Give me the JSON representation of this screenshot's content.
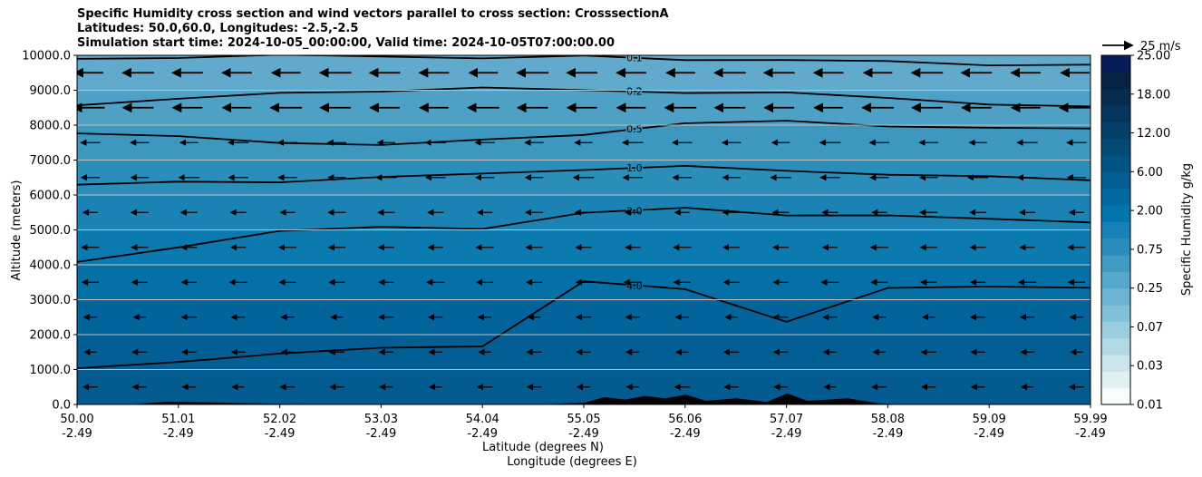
{
  "chart_data": {
    "type": "contour",
    "title_lines": [
      "Specific Humidity cross section and wind vectors parallel to cross section: CrosssectionA",
      "Latitudes: 50.0,60.0, Longitudes: -2.5,-2.5",
      "Simulation start time: 2024-10-05_00:00:00, Valid time: 2024-10-05T07:00:00.00"
    ],
    "xlabel_lat": "Latitude (degrees N)",
    "xlabel_lon": "Longitude (degrees E)",
    "ylabel": "Altitude (meters)",
    "xlim": [
      50.0,
      59.99
    ],
    "ylim": [
      0,
      10000
    ],
    "x_ticks": [
      {
        "lat": "50.00",
        "lon": "-2.49"
      },
      {
        "lat": "51.01",
        "lon": "-2.49"
      },
      {
        "lat": "52.02",
        "lon": "-2.49"
      },
      {
        "lat": "53.03",
        "lon": "-2.49"
      },
      {
        "lat": "54.04",
        "lon": "-2.49"
      },
      {
        "lat": "55.05",
        "lon": "-2.49"
      },
      {
        "lat": "56.06",
        "lon": "-2.49"
      },
      {
        "lat": "57.07",
        "lon": "-2.49"
      },
      {
        "lat": "58.08",
        "lon": "-2.49"
      },
      {
        "lat": "59.09",
        "lon": "-2.49"
      },
      {
        "lat": "59.99",
        "lon": "-2.49"
      }
    ],
    "y_ticks": [
      "0.0",
      "1000.0",
      "2000.0",
      "3000.0",
      "4000.0",
      "5000.0",
      "6000.0",
      "7000.0",
      "8000.0",
      "9000.0",
      "10000.0"
    ],
    "grid": "horizontal",
    "colorbar": {
      "label": "Specific Humidity g/kg",
      "tick_labels": [
        "0.01",
        "0.03",
        "0.07",
        "0.25",
        "0.75",
        "2.00",
        "6.00",
        "12.00",
        "18.00",
        "25.00"
      ],
      "colors": [
        "#f7fcfd",
        "#e1f0f3",
        "#cae5ec",
        "#b2d9e5",
        "#9acede",
        "#80c0d8",
        "#6ab4d1",
        "#55a7cb",
        "#3f9ac4",
        "#2a8dbd",
        "#1881b8",
        "#0275ae",
        "#01699f",
        "#025e92",
        "#035485",
        "#044a77",
        "#05406a",
        "#06365d",
        "#072c50",
        "#082243",
        "#081d58"
      ]
    },
    "wind_key": {
      "label": "25 m/s"
    },
    "contour_levels": [
      {
        "label": "0.1",
        "z": [
          9900,
          9950,
          9980,
          9990,
          9920,
          9960,
          9900,
          9850,
          9820,
          9750,
          9700
        ]
      },
      {
        "label": "0.2",
        "z": [
          8600,
          8750,
          8900,
          9000,
          9050,
          9000,
          8950,
          8900,
          8800,
          8600,
          8500
        ]
      },
      {
        "label": "0.5",
        "z": [
          7800,
          7650,
          7500,
          7450,
          7550,
          7750,
          8050,
          8100,
          8000,
          7900,
          7900
        ]
      },
      {
        "label": "1.0",
        "z": [
          6300,
          6350,
          6400,
          6500,
          6600,
          6750,
          6800,
          6700,
          6600,
          6500,
          6450
        ]
      },
      {
        "label": "2.0",
        "z": [
          4050,
          4500,
          5000,
          5050,
          5050,
          5500,
          5600,
          5450,
          5400,
          5300,
          5250
        ]
      },
      {
        "label": "4.0",
        "z": [
          1000,
          1250,
          1450,
          1600,
          1700,
          3500,
          3300,
          2400,
          3300,
          3400,
          3350
        ]
      }
    ],
    "wind_vectors": "westward (negative along-section), strongest above 8000 m"
  }
}
